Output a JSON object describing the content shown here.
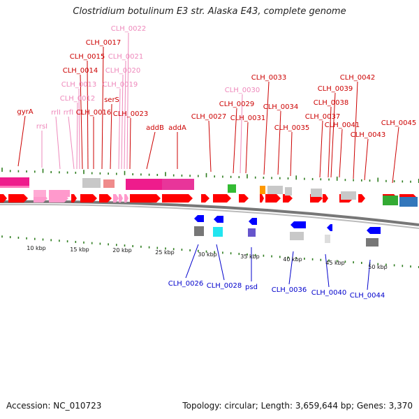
{
  "title": "Clostridium botulinum E3 str. Alaska E43, complete genome",
  "footer": {
    "accession": "Accession: NC_010723",
    "summary": "Topology: circular; Length: 3,659,644 bp; Genes: 3,370"
  },
  "colors": {
    "cds": "#ff0000",
    "rna": "#ff99cc",
    "minus_strand": "#0000ff",
    "tick": "#2e7d1f",
    "backbone": "#888888"
  },
  "scale_labels": [
    "10 kbp",
    "15 kbp",
    "20 kbp",
    "25 kbp",
    "30 kbp",
    "35 kbp",
    "40 kbp",
    "45 kbp",
    "50 kbp"
  ],
  "top_labels": [
    {
      "text": "gyrA",
      "color": "#cc0000"
    },
    {
      "text": "rrsI",
      "color": "#ee88bb"
    },
    {
      "text": "rrlI",
      "color": "#ee88bb"
    },
    {
      "text": "rrfI",
      "color": "#ee88bb"
    },
    {
      "text": "CLH_0012",
      "color": "#ee88bb"
    },
    {
      "text": "CLH_0013",
      "color": "#ee88bb"
    },
    {
      "text": "CLH_0014",
      "color": "#cc0000"
    },
    {
      "text": "CLH_0015",
      "color": "#cc0000"
    },
    {
      "text": "CLH_0016",
      "color": "#cc0000"
    },
    {
      "text": "CLH_0017",
      "color": "#cc0000"
    },
    {
      "text": "serS",
      "color": "#cc0000"
    },
    {
      "text": "CLH_0019",
      "color": "#ee88bb"
    },
    {
      "text": "CLH_0020",
      "color": "#ee88bb"
    },
    {
      "text": "CLH_0021",
      "color": "#ee88bb"
    },
    {
      "text": "CLH_0022",
      "color": "#ee88bb"
    },
    {
      "text": "CLH_0023",
      "color": "#cc0000"
    },
    {
      "text": "addB",
      "color": "#cc0000"
    },
    {
      "text": "addA",
      "color": "#cc0000"
    },
    {
      "text": "CLH_0027",
      "color": "#cc0000"
    },
    {
      "text": "CLH_0029",
      "color": "#cc0000"
    },
    {
      "text": "CLH_0030",
      "color": "#ee88bb"
    },
    {
      "text": "CLH_0031",
      "color": "#cc0000"
    },
    {
      "text": "CLH_0033",
      "color": "#cc0000"
    },
    {
      "text": "CLH_0034",
      "color": "#cc0000"
    },
    {
      "text": "CLH_0035",
      "color": "#cc0000"
    },
    {
      "text": "CLH_0037",
      "color": "#cc0000"
    },
    {
      "text": "CLH_0038",
      "color": "#cc0000"
    },
    {
      "text": "CLH_0039",
      "color": "#cc0000"
    },
    {
      "text": "CLH_0041",
      "color": "#cc0000"
    },
    {
      "text": "CLH_0042",
      "color": "#cc0000"
    },
    {
      "text": "CLH_0043",
      "color": "#cc0000"
    },
    {
      "text": "CLH_0045",
      "color": "#cc0000"
    }
  ],
  "bottom_labels": [
    {
      "text": "CLH_0026",
      "color": "#0000cc"
    },
    {
      "text": "CLH_0028",
      "color": "#0000cc"
    },
    {
      "text": "psd",
      "color": "#0000cc"
    },
    {
      "text": "CLH_0036",
      "color": "#0000cc"
    },
    {
      "text": "CLH_0040",
      "color": "#0000cc"
    },
    {
      "text": "CLH_0044",
      "color": "#0000cc"
    }
  ]
}
